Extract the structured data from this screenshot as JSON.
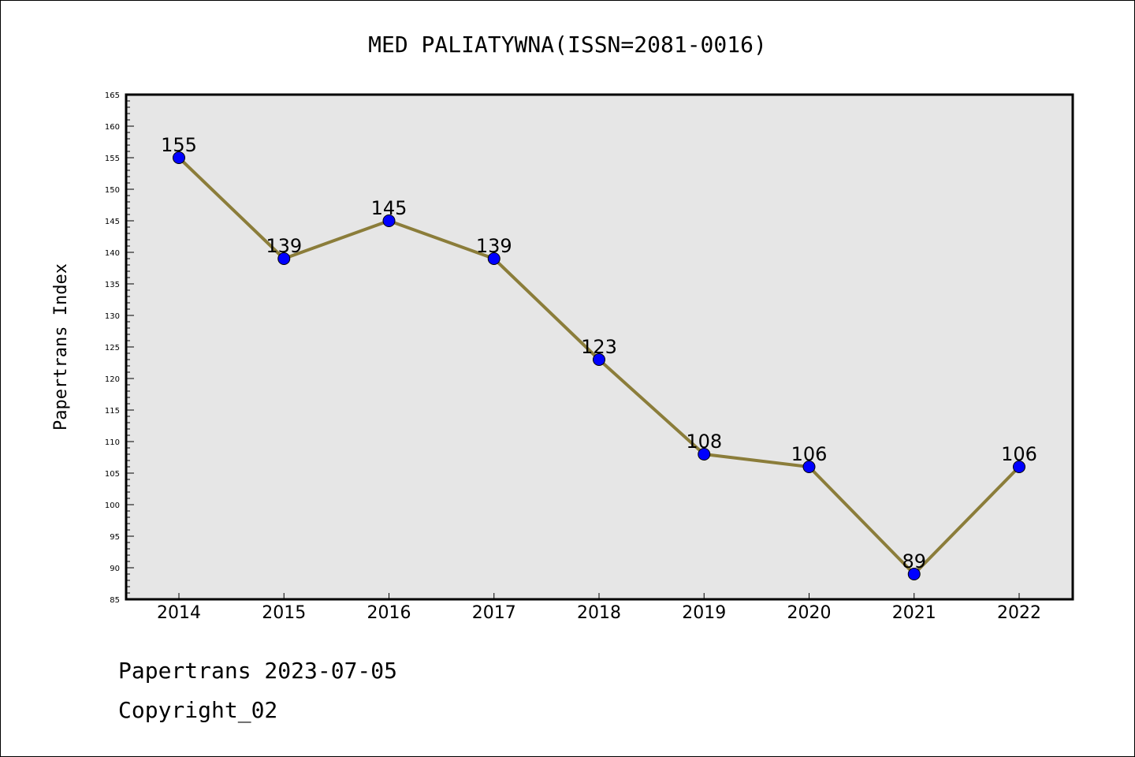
{
  "chart_data": {
    "type": "line",
    "title": "MED PALIATYWNA(ISSN=2081-0016)",
    "xlabel": "",
    "ylabel": "Papertrans Index",
    "categories": [
      "2014",
      "2015",
      "2016",
      "2017",
      "2018",
      "2019",
      "2020",
      "2021",
      "2022"
    ],
    "series": [
      {
        "name": "Papertrans Index",
        "values": [
          155,
          139,
          145,
          139,
          123,
          108,
          106,
          89,
          106
        ]
      }
    ],
    "ylim": [
      85,
      165
    ],
    "ytick_step": 5,
    "grid": false,
    "legend": "none",
    "colors": {
      "line": "#8b7d3a",
      "marker": "#0000ff",
      "marker_edge": "#000000",
      "plot_background": "#e6e6e6"
    }
  },
  "footer": {
    "date_line": "Papertrans 2023-07-05",
    "copyright": "Copyright_02"
  }
}
